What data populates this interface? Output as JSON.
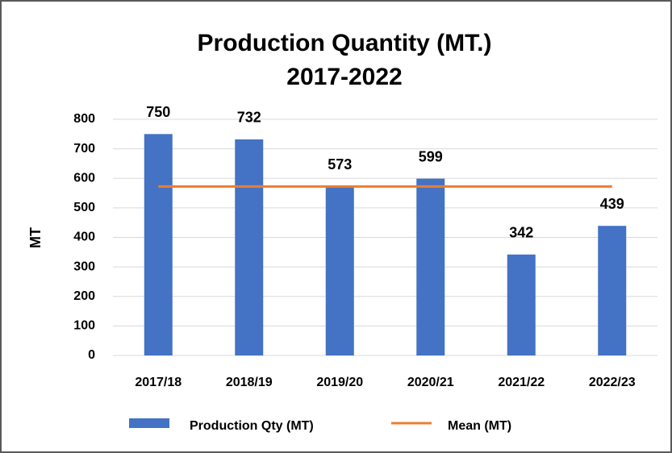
{
  "chart_data": {
    "type": "bar",
    "title": [
      "Production Quantity (MT.)",
      "2017-2022"
    ],
    "y_label": "MT",
    "categories": [
      "2017/18",
      "2018/19",
      "2019/20",
      "2020/21",
      "2021/22",
      "2022/23"
    ],
    "series": [
      {
        "name": "Production Qty (MT)",
        "type": "bar",
        "color": "#4472c4",
        "values": [
          750,
          732,
          573,
          599,
          342,
          439
        ],
        "data_labels": true
      },
      {
        "name": "Mean (MT)",
        "type": "line",
        "color": "#ed7d31",
        "values": [
          572.5,
          572.5,
          572.5,
          572.5,
          572.5,
          572.5
        ]
      }
    ],
    "ylim": [
      0,
      800
    ],
    "yticks": [
      0,
      100,
      200,
      300,
      400,
      500,
      600,
      700,
      800
    ],
    "grid": true,
    "legend": "bottom"
  }
}
